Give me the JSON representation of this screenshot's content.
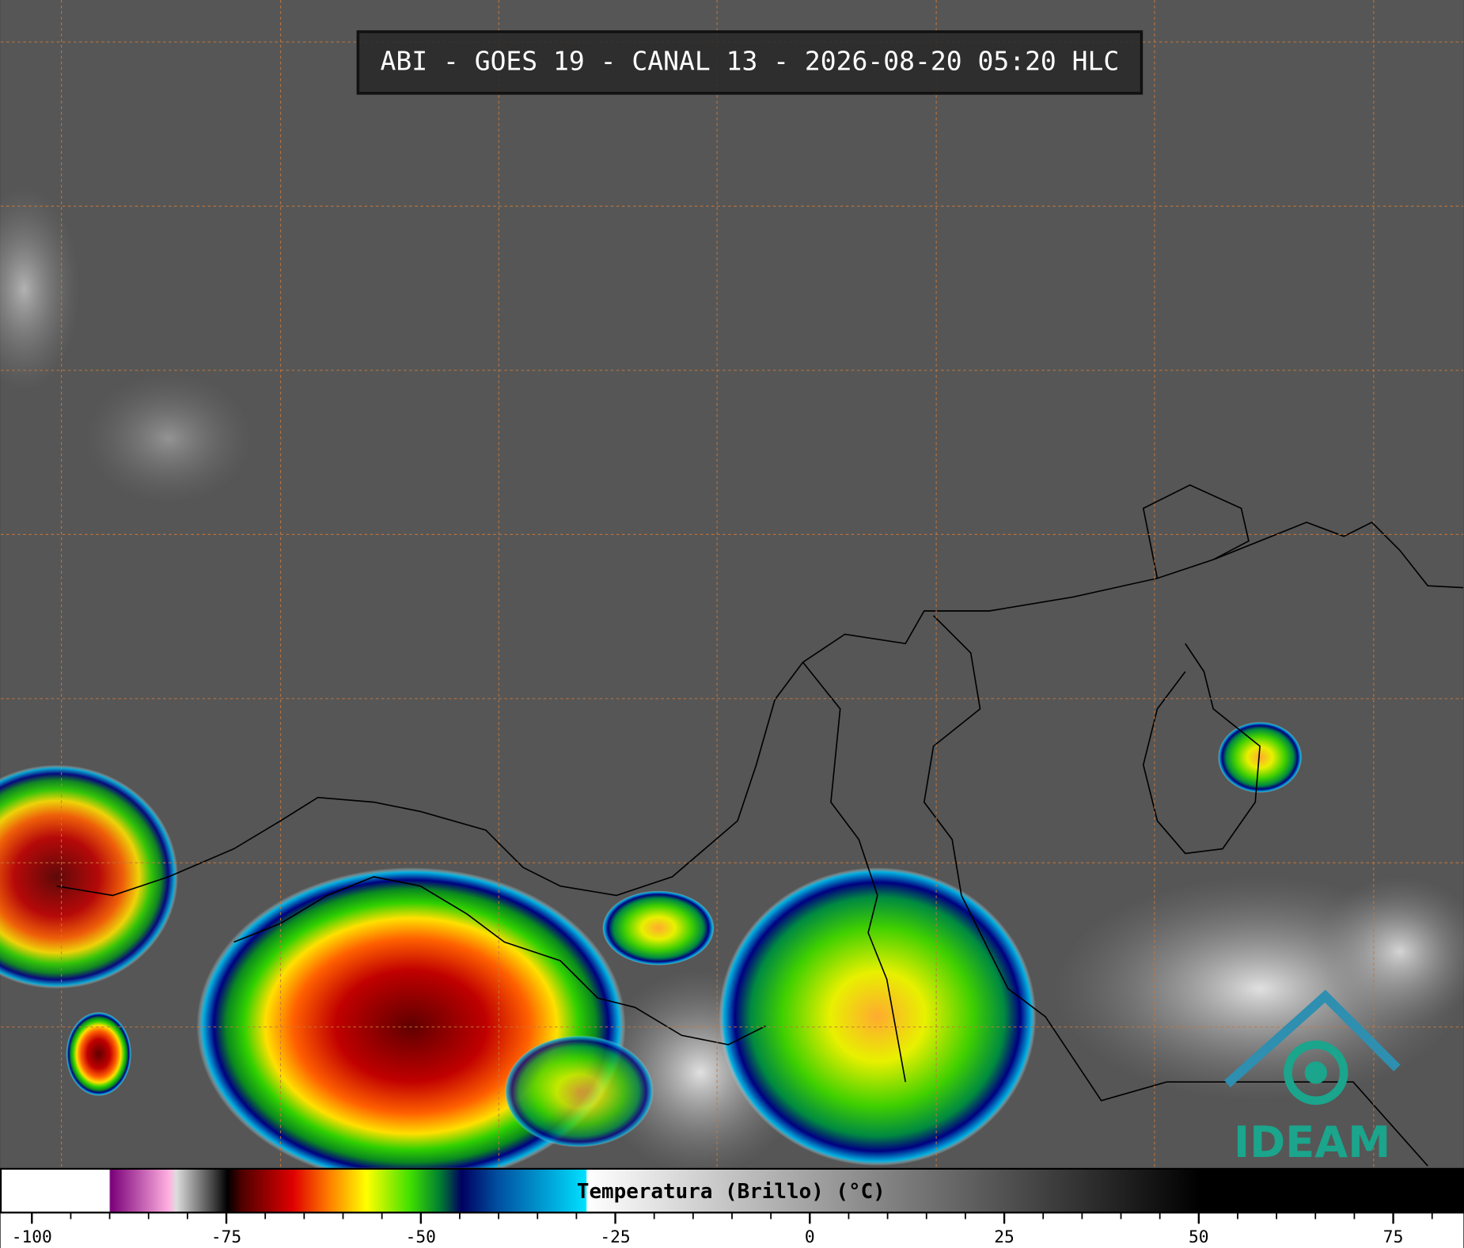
{
  "header": {
    "title": "ABI - GOES 19 - CANAL 13 - 2026-08-20 05:20 HLC"
  },
  "colorbar": {
    "label": "Temperatura (Brillo) (°C)",
    "xlim": [
      -104,
      84
    ],
    "xticks": [
      -100,
      -75,
      -50,
      -25,
      0,
      25,
      50,
      75
    ],
    "minor_xticks": [
      -95,
      -90,
      -85,
      -80,
      -70,
      -65,
      -60,
      -55,
      -45,
      -40,
      -35,
      -30,
      -20,
      -15,
      -10,
      -5,
      5,
      10,
      15,
      20,
      30,
      35,
      40,
      45,
      55,
      60,
      65,
      70,
      80
    ]
  },
  "logo": {
    "text": "IDEAM"
  }
}
